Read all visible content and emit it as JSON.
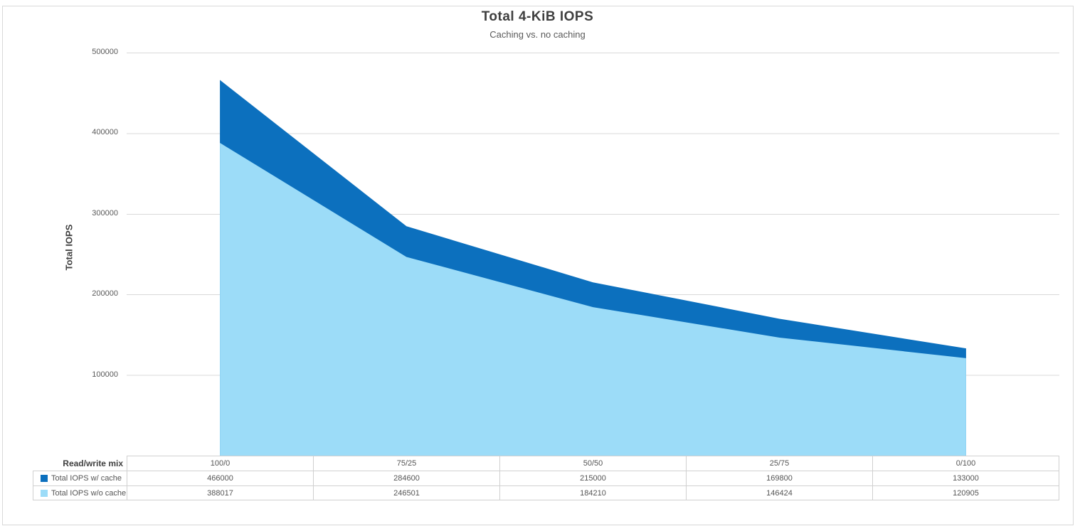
{
  "chart_data": {
    "type": "area",
    "title": "Total 4-KiB IOPS",
    "subtitle": "Caching vs. no caching",
    "xlabel": "Read/write mix",
    "ylabel": "Total IOPS",
    "categories": [
      "100/0",
      "75/25",
      "50/50",
      "25/75",
      "0/100"
    ],
    "series": [
      {
        "name": "Total IOPS w/ cache",
        "color": "#0C70BE",
        "values": [
          466000,
          284600,
          215000,
          169800,
          133000
        ]
      },
      {
        "name": "Total IOPS w/o cache",
        "color": "#9CDCF8",
        "values": [
          388017,
          246501,
          184210,
          146424,
          120905
        ]
      }
    ],
    "ylim": [
      0,
      500000
    ],
    "yticks": [
      100000,
      200000,
      300000,
      400000,
      500000
    ],
    "grid": true,
    "legend_position": "data-table",
    "gridline_color": "#D9D9D9",
    "table_border_color": "#D0D0D0"
  }
}
